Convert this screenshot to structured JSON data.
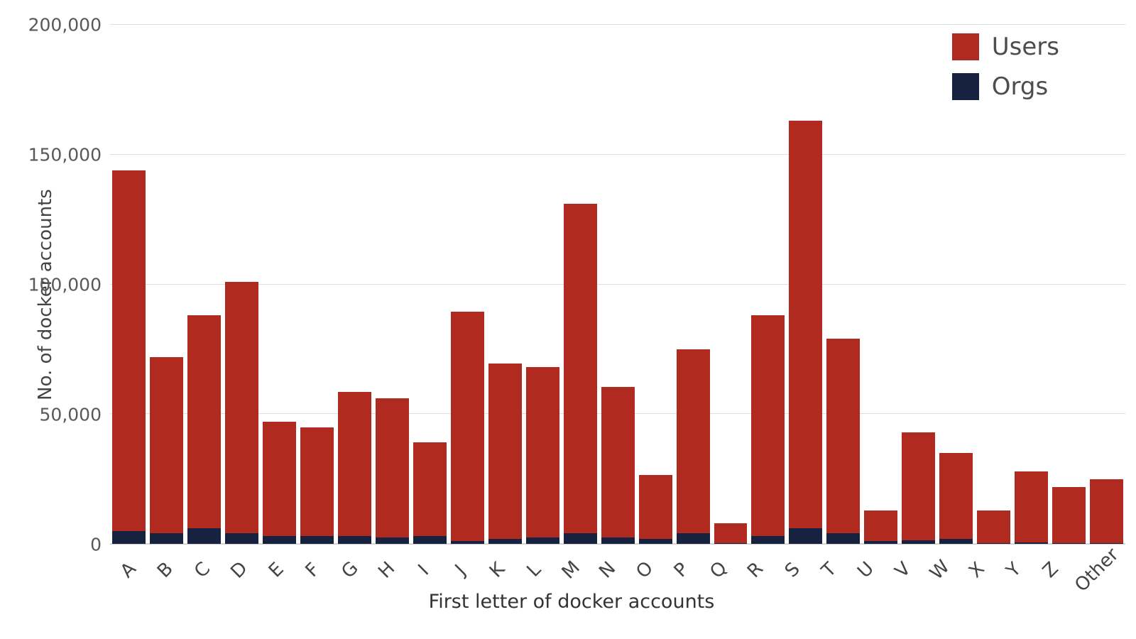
{
  "chart_data": {
    "type": "bar",
    "stacked": true,
    "title": "",
    "xlabel": "First letter of docker accounts",
    "ylabel": "No. of docker accounts",
    "ylim": [
      0,
      200000
    ],
    "yticks": [
      0,
      50000,
      100000,
      150000,
      200000
    ],
    "ytick_labels": [
      "0",
      "50,000",
      "100,000",
      "150,000",
      "200,000"
    ],
    "grid": "horizontal",
    "legend_position": "top-right",
    "categories": [
      "A",
      "B",
      "C",
      "D",
      "E",
      "F",
      "G",
      "H",
      "I",
      "J",
      "K",
      "L",
      "M",
      "N",
      "O",
      "P",
      "Q",
      "R",
      "S",
      "T",
      "U",
      "V",
      "W",
      "X",
      "Y",
      "Z",
      "Other"
    ],
    "series": [
      {
        "name": "Users",
        "color": "#b02a20",
        "values": [
          139000,
          68000,
          82000,
          97000,
          44000,
          42000,
          55500,
          53500,
          36000,
          88500,
          67500,
          65500,
          127000,
          58000,
          24500,
          71000,
          7700,
          85000,
          157000,
          75000,
          12000,
          41500,
          33000,
          12600,
          27500,
          21600,
          24700
        ]
      },
      {
        "name": "Orgs",
        "color": "#16223f",
        "values": [
          5000,
          4000,
          6000,
          4000,
          3000,
          3000,
          3000,
          2500,
          3000,
          1000,
          2000,
          2500,
          4000,
          2500,
          2000,
          4000,
          300,
          3000,
          6000,
          4000,
          1000,
          1500,
          2000,
          400,
          500,
          400,
          300
        ]
      }
    ]
  }
}
